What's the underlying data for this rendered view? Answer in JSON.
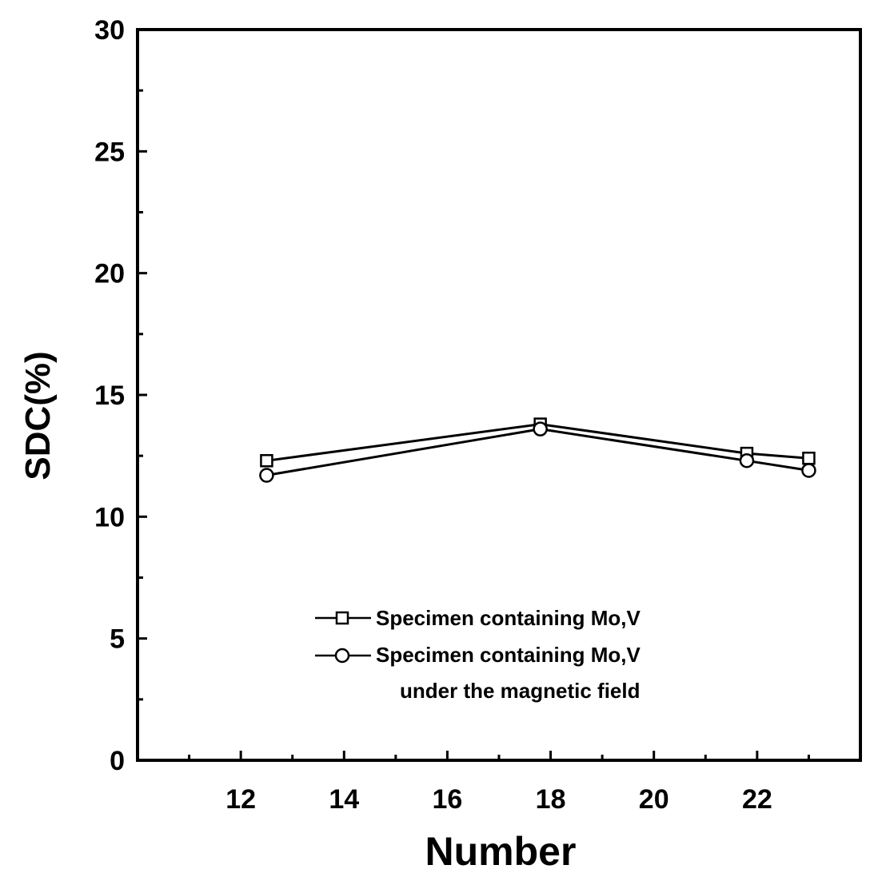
{
  "chart_data": {
    "type": "line",
    "xlabel": "Number",
    "ylabel": "SDC(%)",
    "xlim": [
      10,
      24
    ],
    "ylim": [
      0,
      30
    ],
    "xticks": [
      12,
      14,
      16,
      18,
      20,
      22
    ],
    "yticks": [
      0,
      5,
      10,
      15,
      20,
      25,
      30
    ],
    "grid": false,
    "legend_position": "bottom-center",
    "series": [
      {
        "name": "Specimen containing Mo,V",
        "marker": "square",
        "x": [
          12.5,
          17.8,
          21.8,
          23.0
        ],
        "y": [
          12.3,
          13.8,
          12.6,
          12.4
        ]
      },
      {
        "name": "Specimen containing Mo,V",
        "name_line2": "under the magnetic field",
        "marker": "circle",
        "x": [
          12.5,
          17.8,
          21.8,
          23.0
        ],
        "y": [
          11.7,
          13.6,
          12.3,
          11.9
        ]
      }
    ]
  }
}
